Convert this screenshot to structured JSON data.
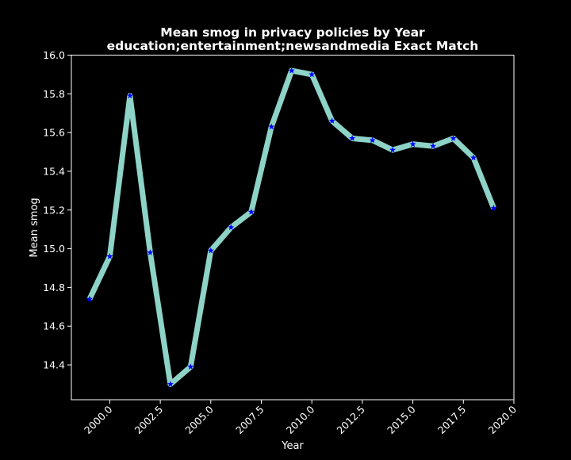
{
  "chart_data": {
    "type": "line",
    "title": "Mean smog in privacy policies by Year",
    "subtitle": "education;entertainment;newsandmedia Exact Match",
    "xlabel": "Year",
    "ylabel": "Mean smog",
    "xlim": [
      1998.1,
      2020.0
    ],
    "ylim": [
      14.22,
      16.0
    ],
    "x_ticks": [
      2000.0,
      2002.5,
      2005.0,
      2007.5,
      2010.0,
      2012.5,
      2015.0,
      2017.5,
      2020.0
    ],
    "x_tick_labels": [
      "2000.0",
      "2002.5",
      "2005.0",
      "2007.5",
      "2010.0",
      "2012.5",
      "2015.0",
      "2017.5",
      "2020.0"
    ],
    "y_ticks": [
      14.4,
      14.6,
      14.8,
      15.0,
      15.2,
      15.4,
      15.6,
      15.8,
      16.0
    ],
    "y_tick_labels": [
      "14.4",
      "14.6",
      "14.8",
      "15.0",
      "15.2",
      "15.4",
      "15.6",
      "15.8",
      "16.0"
    ],
    "grid": false,
    "line_color": "#8dd3c7",
    "marker_color": "#0000ff",
    "marker": "star",
    "series": [
      {
        "x": [
          1999,
          2000,
          2001,
          2002,
          2003,
          2004,
          2005,
          2006,
          2007,
          2008,
          2009,
          2010,
          2011,
          2012,
          2013,
          2014,
          2015,
          2016,
          2017,
          2018,
          2019
        ],
        "values": [
          14.74,
          14.96,
          15.79,
          14.98,
          14.3,
          14.39,
          14.99,
          15.11,
          15.19,
          15.63,
          15.92,
          15.9,
          15.66,
          15.57,
          15.56,
          15.51,
          15.54,
          15.53,
          15.57,
          15.47,
          15.21
        ]
      }
    ]
  }
}
